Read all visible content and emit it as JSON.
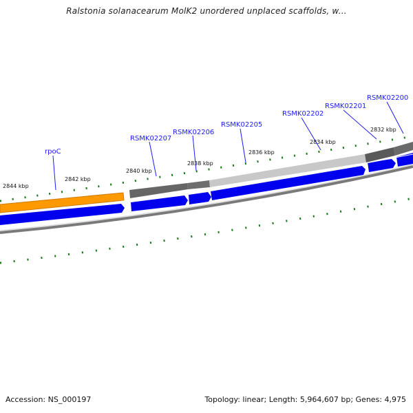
{
  "title": "Ralstonia solanacearum MolK2 unordered unplaced scaffolds, w...",
  "footer": {
    "accession": "Accession: NS_000197",
    "stats": "Topology: linear; Length: 5,964,607 bp; Genes: 4,975"
  },
  "kbp_labels": [
    "2844 kbp",
    "2842 kbp",
    "2840 kbp",
    "2838 kbp",
    "2836 kbp",
    "2834 kbp",
    "2832 kbp"
  ],
  "gene_labels": [
    "rpoC",
    "RSMK02207",
    "RSMK02206",
    "RSMK02205",
    "RSMK02202",
    "RSMK02201",
    "RSMK02200"
  ],
  "colors": {
    "orange": "#ff9900",
    "orange_dark": "#d07a00",
    "gray_dark": "#555555",
    "gray_mid": "#808080",
    "gray_light": "#c8c8c8",
    "blue": "#0000ee",
    "tick_green": "#1a7a1a",
    "label_blue": "#1a1aff"
  }
}
